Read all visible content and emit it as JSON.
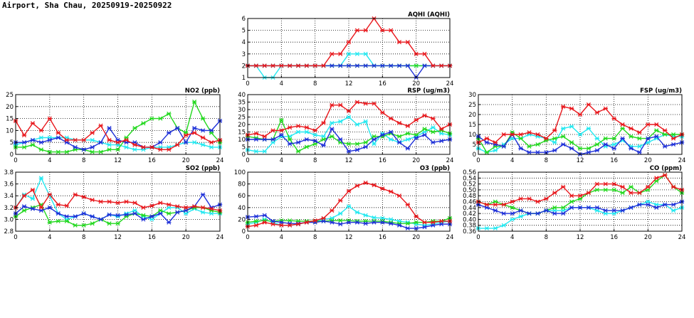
{
  "page": {
    "title": "Airport, Sha Chau, 20250919-20250922"
  },
  "style": {
    "series_colors": {
      "red": "#e8161b",
      "cyan": "#22e8f0",
      "blue": "#1d2fd8",
      "green": "#22d81e"
    },
    "grid_color": "#000000"
  },
  "chart_data": [
    {
      "id": "aqhi",
      "type": "line",
      "title": "AQHI (AQHI)",
      "xlim": [
        0,
        24
      ],
      "ylim": [
        1,
        6
      ],
      "xticks": [
        0,
        4,
        8,
        12,
        16,
        20,
        24
      ],
      "yticks": [
        1,
        2,
        3,
        4,
        5,
        6
      ],
      "x": [
        0,
        1,
        2,
        3,
        4,
        5,
        6,
        7,
        8,
        9,
        10,
        11,
        12,
        13,
        14,
        15,
        16,
        17,
        18,
        19,
        20,
        21,
        22,
        23,
        24
      ],
      "series": [
        {
          "name": "cyan",
          "color": "cyan",
          "values": [
            2,
            2,
            1,
            1,
            2,
            2,
            2,
            2,
            2,
            2,
            2,
            2,
            3,
            3,
            3,
            2,
            2,
            2,
            2,
            2,
            2,
            2,
            2,
            2,
            2
          ]
        },
        {
          "name": "green",
          "color": "green",
          "values": [
            2,
            2,
            2,
            2,
            2,
            2,
            2,
            2,
            2,
            2,
            2,
            2,
            2,
            2,
            2,
            2,
            2,
            2,
            2,
            2,
            2,
            2,
            2,
            2,
            2
          ]
        },
        {
          "name": "blue",
          "color": "blue",
          "values": [
            2,
            2,
            2,
            2,
            2,
            2,
            2,
            2,
            2,
            2,
            2,
            2,
            2,
            2,
            2,
            2,
            2,
            2,
            2,
            2,
            1,
            2,
            2,
            2,
            2
          ]
        },
        {
          "name": "red",
          "color": "red",
          "values": [
            2,
            2,
            2,
            2,
            2,
            2,
            2,
            2,
            2,
            2,
            3,
            3,
            4,
            5,
            5,
            6,
            5,
            5,
            4,
            4,
            3,
            3,
            2,
            2,
            2
          ]
        }
      ]
    },
    {
      "id": "no2",
      "type": "line",
      "title": "NO2 (ppb)",
      "xlim": [
        0,
        24
      ],
      "ylim": [
        0,
        25
      ],
      "xticks": [
        0,
        4,
        8,
        12,
        16,
        20,
        24
      ],
      "yticks": [
        0,
        5,
        10,
        15,
        20,
        25
      ],
      "x": [
        0,
        1,
        2,
        3,
        4,
        5,
        6,
        7,
        8,
        9,
        10,
        11,
        12,
        13,
        14,
        15,
        16,
        17,
        18,
        19,
        20,
        21,
        22,
        23,
        24
      ],
      "series": [
        {
          "name": "cyan",
          "color": "cyan",
          "values": [
            4,
            5,
            6,
            7,
            7,
            7,
            7,
            6,
            6,
            6,
            5,
            4,
            4,
            3,
            2,
            2,
            3,
            3,
            3,
            4,
            5,
            5,
            4,
            3,
            3
          ]
        },
        {
          "name": "green",
          "color": "green",
          "values": [
            3,
            3,
            4,
            2,
            1,
            1,
            1,
            2,
            2,
            1,
            1,
            2,
            2,
            7,
            11,
            13,
            15,
            15,
            17,
            11,
            9,
            22,
            15,
            9,
            5
          ]
        },
        {
          "name": "blue",
          "color": "blue",
          "values": [
            5,
            5,
            6,
            5,
            6,
            7,
            5,
            3,
            2,
            3,
            5,
            11,
            6,
            5,
            5,
            3,
            3,
            5,
            9,
            11,
            5,
            11,
            10,
            10,
            14
          ]
        },
        {
          "name": "red",
          "color": "red",
          "values": [
            14,
            8,
            13,
            10,
            15,
            9,
            6,
            6,
            6,
            9,
            12,
            6,
            5,
            6,
            4,
            3,
            3,
            2,
            2,
            4,
            8,
            9,
            7,
            5,
            6
          ]
        }
      ]
    },
    {
      "id": "rsp",
      "type": "line",
      "title": "RSP (ug/m3)",
      "xlim": [
        0,
        24
      ],
      "ylim": [
        0,
        40
      ],
      "xticks": [
        0,
        4,
        8,
        12,
        16,
        20,
        24
      ],
      "yticks": [
        0,
        5,
        10,
        15,
        20,
        25,
        30,
        35,
        40
      ],
      "x": [
        0,
        1,
        2,
        3,
        4,
        5,
        6,
        7,
        8,
        9,
        10,
        11,
        12,
        13,
        14,
        15,
        16,
        17,
        18,
        19,
        20,
        21,
        22,
        23,
        24
      ],
      "series": [
        {
          "name": "cyan",
          "color": "cyan",
          "values": [
            3,
            2,
            2,
            8,
            12,
            12,
            15,
            15,
            13,
            12,
            21,
            22,
            25,
            20,
            22,
            7,
            14,
            10,
            8,
            10,
            12,
            15,
            18,
            14,
            13
          ]
        },
        {
          "name": "green",
          "color": "green",
          "values": [
            12,
            11,
            10,
            10,
            23,
            10,
            2,
            5,
            7,
            10,
            12,
            8,
            7,
            7,
            8,
            12,
            12,
            14,
            12,
            14,
            13,
            17,
            15,
            16,
            14
          ]
        },
        {
          "name": "blue",
          "color": "blue",
          "values": [
            10,
            10,
            10,
            10,
            13,
            7,
            8,
            10,
            9,
            6,
            17,
            10,
            2,
            3,
            5,
            10,
            13,
            15,
            8,
            4,
            11,
            13,
            8,
            9,
            10
          ]
        },
        {
          "name": "red",
          "color": "red",
          "values": [
            13,
            14,
            12,
            16,
            16,
            18,
            19,
            18,
            16,
            21,
            33,
            33,
            29,
            35,
            34,
            34,
            28,
            24,
            21,
            19,
            23,
            26,
            24,
            17,
            20
          ]
        }
      ]
    },
    {
      "id": "fsp",
      "type": "line",
      "title": "FSP (ug/m3)",
      "xlim": [
        0,
        24
      ],
      "ylim": [
        0,
        30
      ],
      "xticks": [
        0,
        4,
        8,
        12,
        16,
        20,
        24
      ],
      "yticks": [
        0,
        5,
        10,
        15,
        20,
        25,
        30
      ],
      "x": [
        0,
        1,
        2,
        3,
        4,
        5,
        6,
        7,
        8,
        9,
        10,
        11,
        12,
        13,
        14,
        15,
        16,
        17,
        18,
        19,
        20,
        21,
        22,
        23,
        24
      ],
      "series": [
        {
          "name": "cyan",
          "color": "cyan",
          "values": [
            3,
            1,
            2,
            5,
            8,
            8,
            10,
            9,
            8,
            6,
            13,
            14,
            10,
            13,
            8,
            4,
            5,
            7,
            4,
            4,
            6,
            8,
            10,
            9,
            9
          ]
        },
        {
          "name": "green",
          "color": "green",
          "values": [
            8,
            1,
            4,
            4,
            11,
            8,
            4,
            5,
            7,
            8,
            9,
            6,
            3,
            3,
            5,
            8,
            8,
            13,
            9,
            8,
            8,
            12,
            10,
            10,
            10
          ]
        },
        {
          "name": "blue",
          "color": "blue",
          "values": [
            9,
            6,
            5,
            4,
            10,
            3,
            1,
            1,
            1,
            2,
            5,
            3,
            0,
            1,
            2,
            5,
            3,
            8,
            3,
            1,
            8,
            9,
            4,
            5,
            6
          ]
        },
        {
          "name": "red",
          "color": "red",
          "values": [
            6,
            8,
            6,
            10,
            10,
            10,
            11,
            10,
            8,
            12,
            24,
            23,
            20,
            25,
            21,
            23,
            18,
            15,
            13,
            11,
            15,
            15,
            12,
            8,
            10
          ]
        }
      ]
    },
    {
      "id": "so2",
      "type": "line",
      "title": "SO2 (ppb)",
      "xlim": [
        0,
        24
      ],
      "ylim": [
        2.8,
        3.8
      ],
      "xticks": [
        0,
        4,
        8,
        12,
        16,
        20,
        24
      ],
      "yticks": [
        2.8,
        3.0,
        3.2,
        3.4,
        3.6,
        3.8
      ],
      "x": [
        0,
        1,
        2,
        3,
        4,
        5,
        6,
        7,
        8,
        9,
        10,
        11,
        12,
        13,
        14,
        15,
        16,
        17,
        18,
        19,
        20,
        21,
        22,
        23,
        24
      ],
      "series": [
        {
          "name": "cyan",
          "color": "cyan",
          "values": [
            3.2,
            3.42,
            3.35,
            3.7,
            3.4,
            3.1,
            3.0,
            3.05,
            3.1,
            3.05,
            3.0,
            3.08,
            3.05,
            3.1,
            3.15,
            3.05,
            3.0,
            3.1,
            3.2,
            3.2,
            3.1,
            3.18,
            3.12,
            3.1,
            3.1
          ]
        },
        {
          "name": "green",
          "color": "green",
          "values": [
            3.05,
            3.15,
            3.2,
            3.25,
            2.95,
            2.97,
            2.97,
            2.9,
            2.9,
            2.93,
            3.0,
            2.93,
            2.93,
            3.05,
            3.1,
            3.07,
            3.05,
            3.15,
            3.1,
            3.12,
            3.15,
            3.2,
            3.2,
            3.15,
            3.12
          ]
        },
        {
          "name": "blue",
          "color": "blue",
          "values": [
            3.1,
            3.22,
            3.18,
            3.15,
            3.2,
            3.1,
            3.05,
            3.05,
            3.1,
            3.05,
            3.0,
            3.08,
            3.07,
            3.08,
            3.1,
            3.0,
            3.05,
            3.1,
            2.95,
            3.12,
            3.15,
            3.22,
            3.42,
            3.2,
            3.25
          ]
        },
        {
          "name": "red",
          "color": "red",
          "values": [
            3.2,
            3.4,
            3.5,
            3.2,
            3.42,
            3.25,
            3.23,
            3.42,
            3.38,
            3.33,
            3.3,
            3.3,
            3.28,
            3.3,
            3.28,
            3.2,
            3.23,
            3.28,
            3.25,
            3.22,
            3.2,
            3.22,
            3.2,
            3.18,
            3.15
          ]
        }
      ]
    },
    {
      "id": "o3",
      "type": "line",
      "title": "O3 (ppb)",
      "xlim": [
        0,
        24
      ],
      "ylim": [
        0,
        100
      ],
      "xticks": [
        0,
        4,
        8,
        12,
        16,
        20,
        24
      ],
      "yticks": [
        0,
        20,
        40,
        60,
        80,
        100
      ],
      "x": [
        0,
        1,
        2,
        3,
        4,
        5,
        6,
        7,
        8,
        9,
        10,
        11,
        12,
        13,
        14,
        15,
        16,
        17,
        18,
        19,
        20,
        21,
        22,
        23,
        24
      ],
      "series": [
        {
          "name": "cyan",
          "color": "cyan",
          "values": [
            12,
            15,
            20,
            15,
            10,
            10,
            12,
            15,
            17,
            20,
            22,
            30,
            42,
            32,
            27,
            23,
            22,
            20,
            17,
            15,
            12,
            10,
            12,
            15,
            17
          ]
        },
        {
          "name": "green",
          "color": "green",
          "values": [
            15,
            17,
            18,
            17,
            18,
            18,
            17,
            17,
            17,
            17,
            18,
            18,
            18,
            17,
            17,
            17,
            17,
            15,
            13,
            13,
            15,
            15,
            17,
            17,
            22
          ]
        },
        {
          "name": "blue",
          "color": "blue",
          "values": [
            24,
            25,
            27,
            17,
            15,
            13,
            13,
            15,
            15,
            17,
            15,
            12,
            15,
            15,
            13,
            15,
            15,
            13,
            10,
            5,
            5,
            7,
            10,
            12,
            12
          ]
        },
        {
          "name": "red",
          "color": "red",
          "values": [
            8,
            10,
            15,
            12,
            10,
            10,
            12,
            15,
            18,
            22,
            35,
            52,
            68,
            77,
            82,
            78,
            72,
            67,
            60,
            45,
            25,
            15,
            15,
            17,
            17
          ]
        }
      ]
    },
    {
      "id": "co",
      "type": "line",
      "title": "CO (ppm)",
      "xlim": [
        0,
        24
      ],
      "ylim": [
        0.36,
        0.56
      ],
      "xticks": [
        0,
        4,
        8,
        12,
        16,
        20,
        24
      ],
      "yticks": [
        0.36,
        0.38,
        0.4,
        0.42,
        0.44,
        0.46,
        0.48,
        0.5,
        0.52,
        0.54,
        0.56
      ],
      "x": [
        0,
        1,
        2,
        3,
        4,
        5,
        6,
        7,
        8,
        9,
        10,
        11,
        12,
        13,
        14,
        15,
        16,
        17,
        18,
        19,
        20,
        21,
        22,
        23,
        24
      ],
      "series": [
        {
          "name": "cyan",
          "color": "cyan",
          "values": [
            0.37,
            0.37,
            0.37,
            0.38,
            0.4,
            0.41,
            0.42,
            0.42,
            0.43,
            0.43,
            0.43,
            0.44,
            0.44,
            0.44,
            0.43,
            0.42,
            0.42,
            0.43,
            0.44,
            0.45,
            0.46,
            0.45,
            0.45,
            0.43,
            0.44
          ]
        },
        {
          "name": "green",
          "color": "green",
          "values": [
            0.46,
            0.45,
            0.46,
            0.45,
            0.44,
            0.43,
            0.42,
            0.42,
            0.43,
            0.44,
            0.44,
            0.46,
            0.47,
            0.49,
            0.5,
            0.5,
            0.5,
            0.49,
            0.51,
            0.49,
            0.5,
            0.53,
            0.55,
            0.51,
            0.49
          ]
        },
        {
          "name": "blue",
          "color": "blue",
          "values": [
            0.45,
            0.44,
            0.43,
            0.42,
            0.42,
            0.43,
            0.42,
            0.42,
            0.43,
            0.42,
            0.42,
            0.44,
            0.44,
            0.44,
            0.44,
            0.43,
            0.43,
            0.43,
            0.44,
            0.45,
            0.45,
            0.44,
            0.45,
            0.45,
            0.46
          ]
        },
        {
          "name": "red",
          "color": "red",
          "values": [
            0.46,
            0.45,
            0.45,
            0.45,
            0.46,
            0.47,
            0.47,
            0.46,
            0.47,
            0.49,
            0.51,
            0.48,
            0.48,
            0.49,
            0.52,
            0.52,
            0.52,
            0.51,
            0.49,
            0.49,
            0.51,
            0.54,
            0.55,
            0.51,
            0.5
          ]
        }
      ]
    }
  ]
}
